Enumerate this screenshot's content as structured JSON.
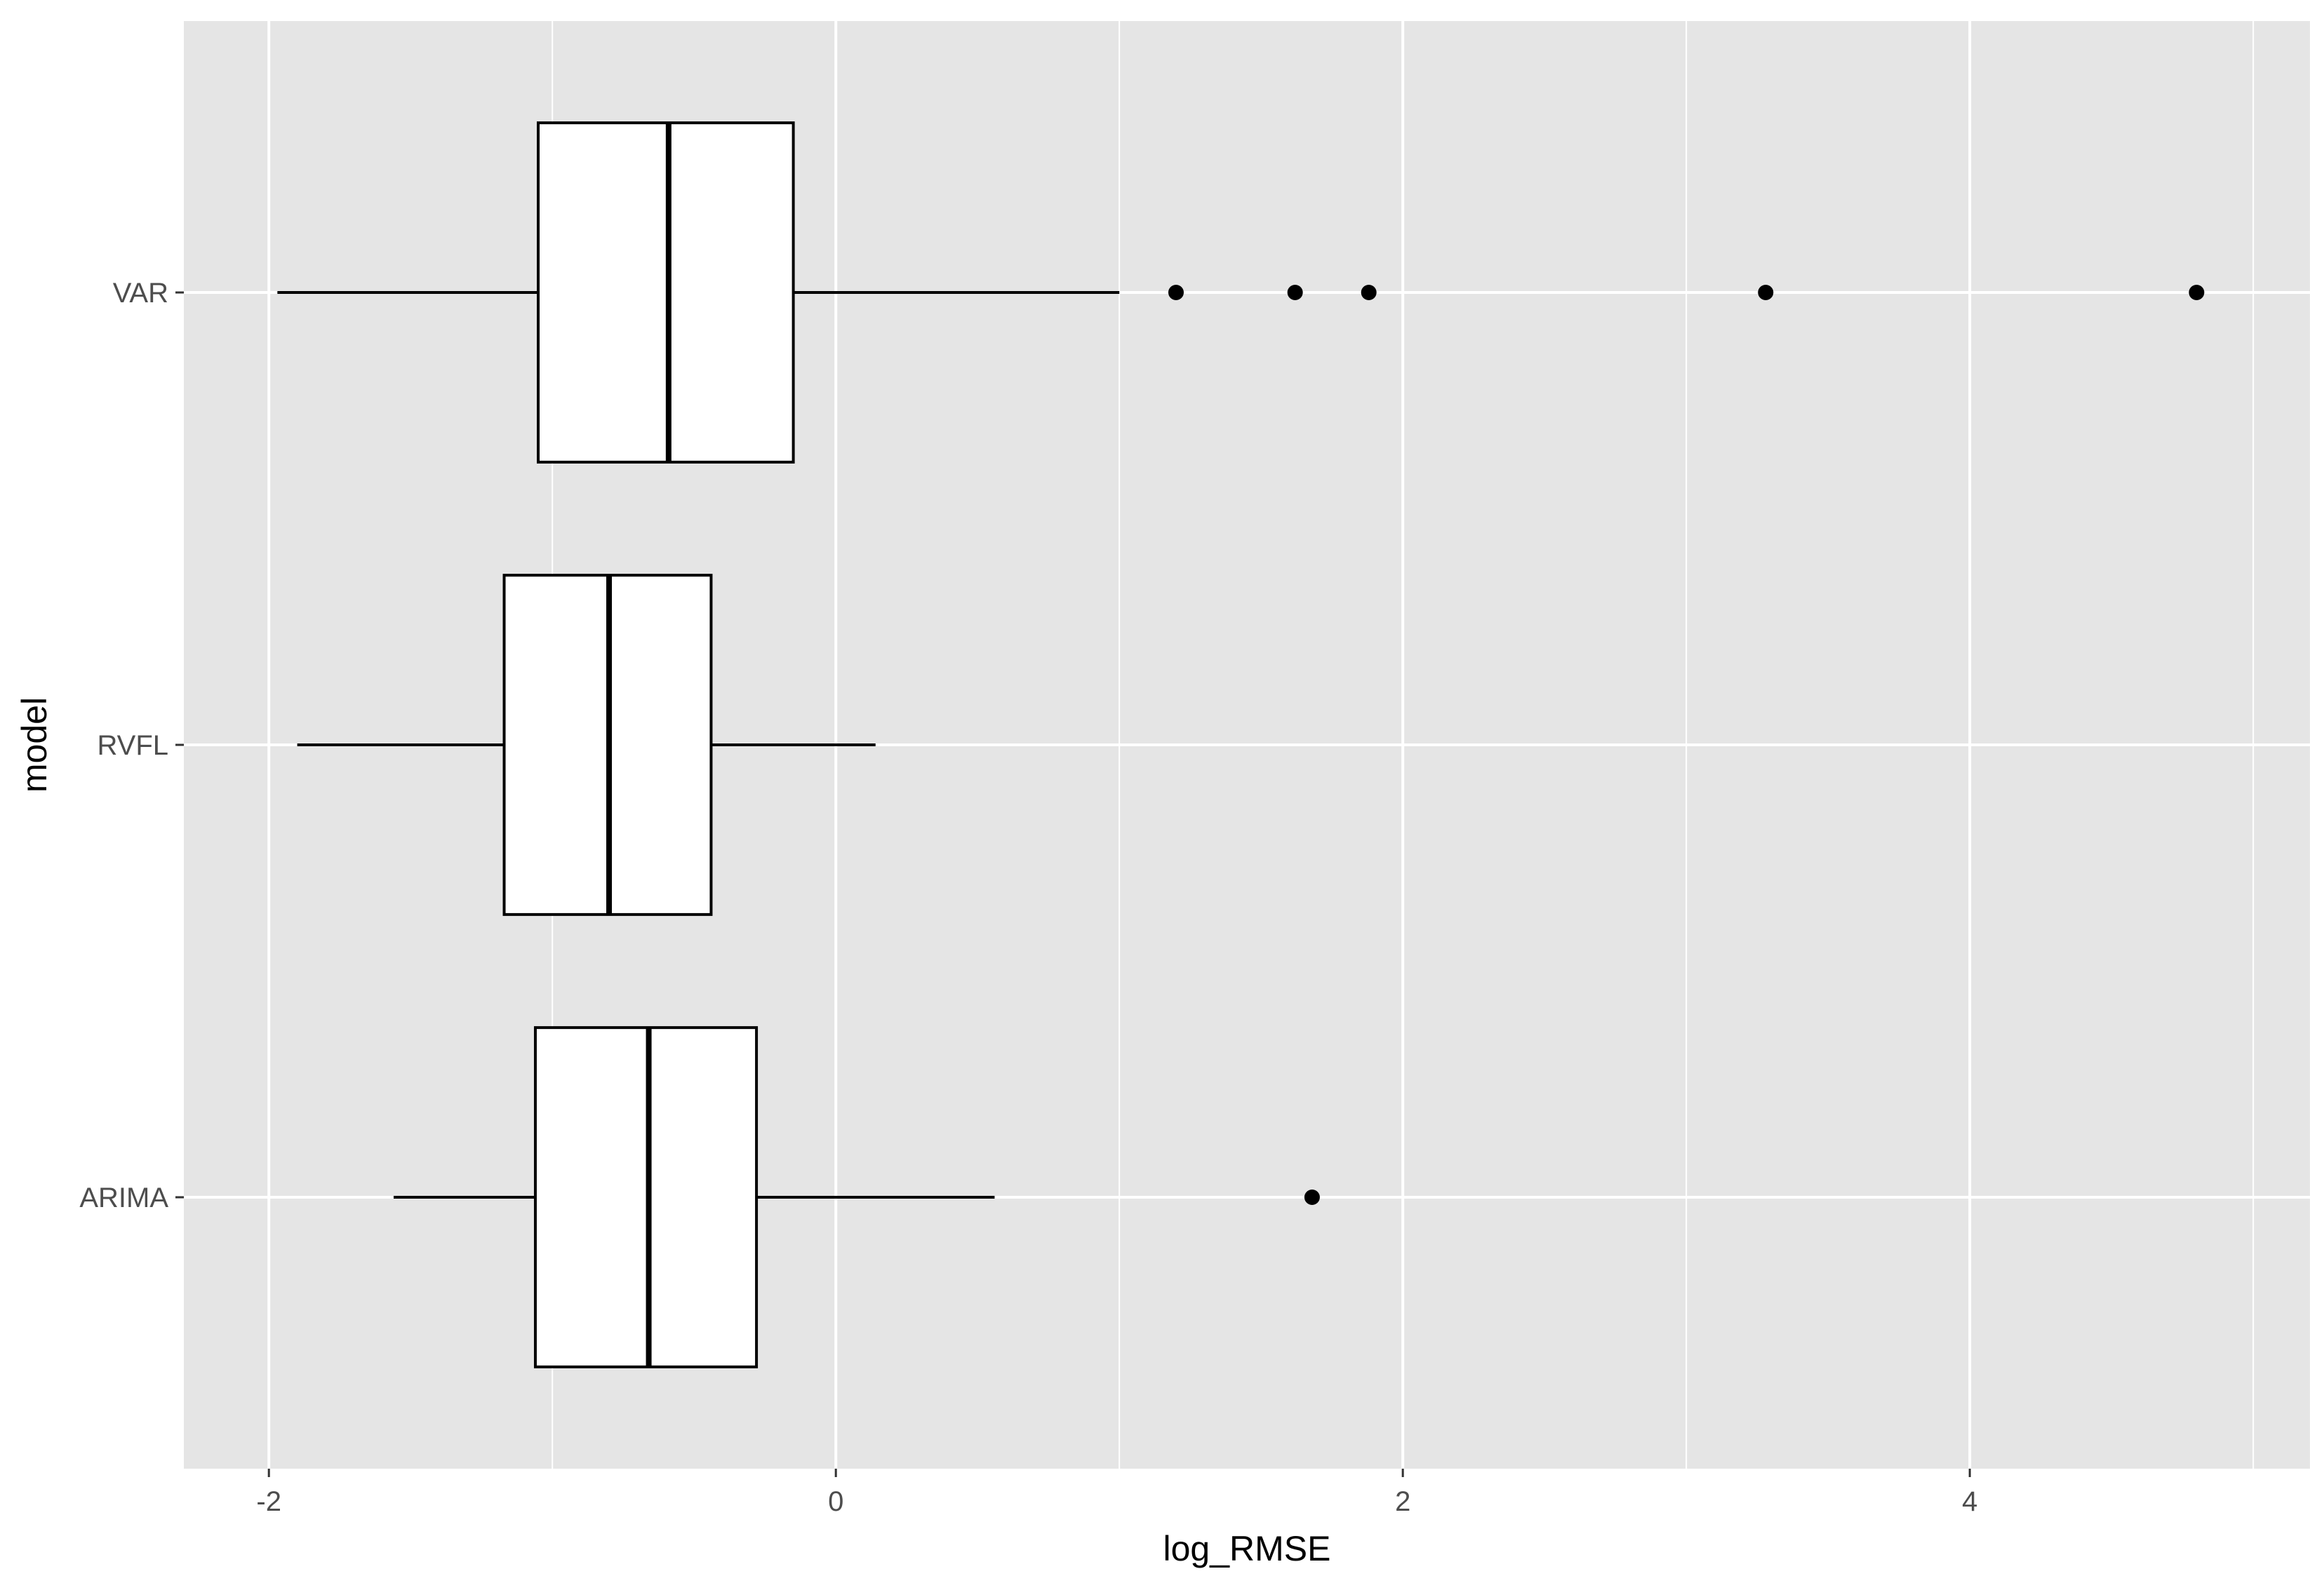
{
  "chart_data": {
    "type": "boxplot",
    "orientation": "horizontal",
    "title": "",
    "xlabel": "log_RMSE",
    "ylabel": "model",
    "xlim": [
      -2.3,
      5.2
    ],
    "x_ticks": [
      -2,
      0,
      2,
      4
    ],
    "x_tick_labels": [
      "-2",
      "0",
      "2",
      "4"
    ],
    "categories": [
      "ARIMA",
      "RVFL",
      "VAR"
    ],
    "boxes": [
      {
        "category": "ARIMA",
        "whisker_low": -1.56,
        "q1": -1.06,
        "median": -0.66,
        "q3": -0.28,
        "whisker_high": 0.56,
        "outliers": [
          1.68
        ]
      },
      {
        "category": "RVFL",
        "whisker_low": -1.9,
        "q1": -1.17,
        "median": -0.8,
        "q3": -0.44,
        "whisker_high": 0.14,
        "outliers": []
      },
      {
        "category": "VAR",
        "whisker_low": -1.97,
        "q1": -1.05,
        "median": -0.59,
        "q3": -0.15,
        "whisker_high": 1.0,
        "outliers": [
          1.2,
          1.62,
          1.88,
          3.28,
          4.8
        ]
      }
    ],
    "grid": true,
    "legend": "none",
    "colors": {
      "panel_background": "#e5e5e5",
      "gridline": "#ffffff",
      "box_fill": "#ffffff",
      "box_outline": "#000000",
      "tick_label": "#4d4d4d",
      "tick_mark": "#333333"
    }
  }
}
